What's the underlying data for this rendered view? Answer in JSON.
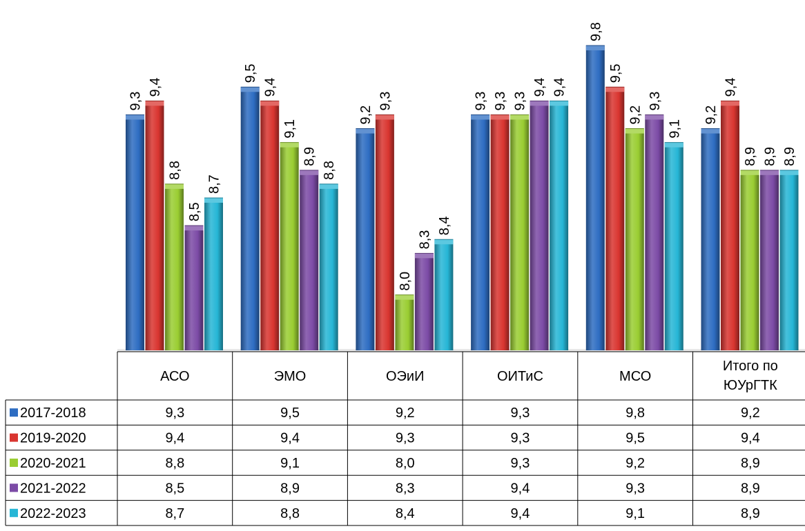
{
  "chart_data": {
    "type": "bar",
    "title": "",
    "xlabel": "",
    "ylabel": "",
    "ylim": [
      7.6,
      9.8
    ],
    "categories": [
      "АСО",
      "ЭМО",
      "ОЭиИ",
      "ОИТиС",
      "МСО",
      "Итого по ЮУрГТК"
    ],
    "series": [
      {
        "name": "2017-2018",
        "values": [
          9.3,
          9.5,
          9.2,
          9.3,
          9.8,
          9.2
        ],
        "labels": [
          "9,3",
          "9,5",
          "9,2",
          "9,3",
          "9,8",
          "9,2"
        ]
      },
      {
        "name": "2019-2020",
        "values": [
          9.4,
          9.4,
          9.3,
          9.3,
          9.5,
          9.4
        ],
        "labels": [
          "9,4",
          "9,4",
          "9,3",
          "9,3",
          "9,5",
          "9,4"
        ]
      },
      {
        "name": "2020-2021",
        "values": [
          8.8,
          9.1,
          8.0,
          9.3,
          9.2,
          8.9
        ],
        "labels": [
          "8,8",
          "9,1",
          "8,0",
          "9,3",
          "9,2",
          "8,9"
        ]
      },
      {
        "name": "2021-2022",
        "values": [
          8.5,
          8.9,
          8.3,
          9.4,
          9.3,
          8.9
        ],
        "labels": [
          "8,5",
          "8,9",
          "8,3",
          "9,4",
          "9,3",
          "8,9"
        ]
      },
      {
        "name": "2022-2023",
        "values": [
          8.7,
          8.8,
          8.4,
          9.4,
          9.1,
          8.9
        ],
        "labels": [
          "8,7",
          "8,8",
          "8,4",
          "9,4",
          "9,1",
          "8,9"
        ]
      }
    ],
    "data_table": true,
    "grid": false,
    "legend": "data-table-left"
  },
  "colors": {
    "2017-2018": "#2E6DC2",
    "2019-2020": "#D93530",
    "2020-2021": "#9ACD32",
    "2021-2022": "#7C4BA6",
    "2022-2023": "#26B6D6"
  }
}
